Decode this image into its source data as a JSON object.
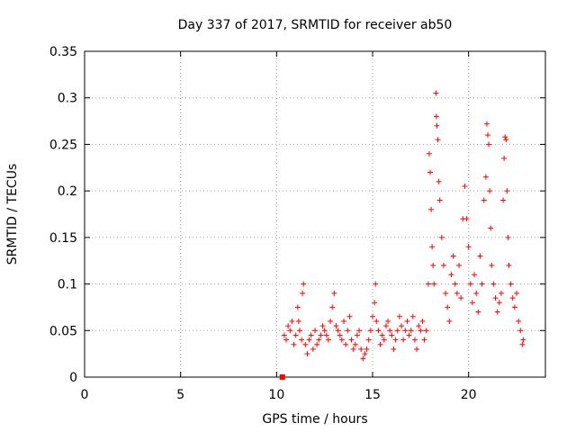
{
  "chart_data": {
    "type": "scatter",
    "title": "Day 337 of 2017, SRMTID for receiver ab50",
    "xlabel": "GPS time / hours",
    "ylabel": "SRMTID / TECUs",
    "xlim": [
      0,
      24
    ],
    "ylim": [
      0,
      0.35
    ],
    "x_ticks": [
      0,
      5,
      10,
      15,
      20
    ],
    "x_tick_labels": [
      "0",
      "5",
      "10",
      "15",
      "20"
    ],
    "y_ticks": [
      0,
      0.05,
      0.1,
      0.15,
      0.2,
      0.25,
      0.3,
      0.35
    ],
    "y_tick_labels": [
      "0",
      "0.05",
      "0.1",
      "0.15",
      "0.2",
      "0.25",
      "0.3",
      "0.35"
    ],
    "grid": true,
    "marker": "+",
    "color": "#ff0000",
    "square_marker": {
      "x": 10.3,
      "y": 0.0
    },
    "series": [
      {
        "name": "SRMTID",
        "points": [
          [
            10.4,
            0.045
          ],
          [
            10.5,
            0.04
          ],
          [
            10.6,
            0.055
          ],
          [
            10.7,
            0.05
          ],
          [
            10.8,
            0.06
          ],
          [
            10.9,
            0.035
          ],
          [
            11.0,
            0.045
          ],
          [
            11.1,
            0.075
          ],
          [
            11.15,
            0.06
          ],
          [
            11.2,
            0.05
          ],
          [
            11.3,
            0.04
          ],
          [
            11.35,
            0.09
          ],
          [
            11.4,
            0.1
          ],
          [
            11.5,
            0.035
          ],
          [
            11.6,
            0.025
          ],
          [
            11.7,
            0.04
          ],
          [
            11.8,
            0.045
          ],
          [
            11.9,
            0.03
          ],
          [
            12.0,
            0.05
          ],
          [
            12.1,
            0.035
          ],
          [
            12.2,
            0.04
          ],
          [
            12.3,
            0.045
          ],
          [
            12.4,
            0.055
          ],
          [
            12.5,
            0.05
          ],
          [
            12.6,
            0.045
          ],
          [
            12.7,
            0.04
          ],
          [
            12.8,
            0.06
          ],
          [
            12.9,
            0.075
          ],
          [
            13.0,
            0.09
          ],
          [
            13.1,
            0.055
          ],
          [
            13.2,
            0.05
          ],
          [
            13.3,
            0.045
          ],
          [
            13.4,
            0.04
          ],
          [
            13.5,
            0.06
          ],
          [
            13.6,
            0.035
          ],
          [
            13.7,
            0.05
          ],
          [
            13.8,
            0.065
          ],
          [
            13.9,
            0.04
          ],
          [
            14.0,
            0.03
          ],
          [
            14.1,
            0.035
          ],
          [
            14.2,
            0.045
          ],
          [
            14.3,
            0.05
          ],
          [
            14.4,
            0.03
          ],
          [
            14.5,
            0.02
          ],
          [
            14.6,
            0.025
          ],
          [
            14.7,
            0.03
          ],
          [
            14.8,
            0.04
          ],
          [
            14.9,
            0.05
          ],
          [
            15.0,
            0.065
          ],
          [
            15.1,
            0.08
          ],
          [
            15.15,
            0.1
          ],
          [
            15.2,
            0.06
          ],
          [
            15.3,
            0.05
          ],
          [
            15.4,
            0.035
          ],
          [
            15.5,
            0.045
          ],
          [
            15.6,
            0.04
          ],
          [
            15.7,
            0.055
          ],
          [
            15.8,
            0.06
          ],
          [
            15.9,
            0.05
          ],
          [
            16.0,
            0.045
          ],
          [
            16.1,
            0.03
          ],
          [
            16.2,
            0.04
          ],
          [
            16.3,
            0.05
          ],
          [
            16.4,
            0.065
          ],
          [
            16.5,
            0.055
          ],
          [
            16.6,
            0.04
          ],
          [
            16.7,
            0.05
          ],
          [
            16.8,
            0.06
          ],
          [
            16.9,
            0.045
          ],
          [
            17.0,
            0.05
          ],
          [
            17.1,
            0.065
          ],
          [
            17.2,
            0.04
          ],
          [
            17.3,
            0.03
          ],
          [
            17.4,
            0.055
          ],
          [
            17.5,
            0.05
          ],
          [
            17.6,
            0.06
          ],
          [
            17.7,
            0.04
          ],
          [
            17.8,
            0.05
          ],
          [
            17.9,
            0.1
          ],
          [
            17.95,
            0.24
          ],
          [
            18.0,
            0.22
          ],
          [
            18.05,
            0.18
          ],
          [
            18.1,
            0.14
          ],
          [
            18.15,
            0.12
          ],
          [
            18.2,
            0.1
          ],
          [
            18.3,
            0.305
          ],
          [
            18.32,
            0.28
          ],
          [
            18.35,
            0.27
          ],
          [
            18.4,
            0.255
          ],
          [
            18.45,
            0.21
          ],
          [
            18.5,
            0.19
          ],
          [
            18.6,
            0.15
          ],
          [
            18.7,
            0.12
          ],
          [
            18.8,
            0.09
          ],
          [
            18.9,
            0.075
          ],
          [
            19.0,
            0.06
          ],
          [
            19.1,
            0.11
          ],
          [
            19.2,
            0.13
          ],
          [
            19.3,
            0.1
          ],
          [
            19.4,
            0.09
          ],
          [
            19.5,
            0.12
          ],
          [
            19.6,
            0.085
          ],
          [
            19.7,
            0.17
          ],
          [
            19.8,
            0.205
          ],
          [
            19.9,
            0.17
          ],
          [
            20.0,
            0.14
          ],
          [
            20.1,
            0.1
          ],
          [
            20.2,
            0.08
          ],
          [
            20.3,
            0.11
          ],
          [
            20.4,
            0.09
          ],
          [
            20.5,
            0.07
          ],
          [
            20.6,
            0.13
          ],
          [
            20.7,
            0.1
          ],
          [
            20.8,
            0.19
          ],
          [
            20.9,
            0.215
          ],
          [
            20.95,
            0.272
          ],
          [
            21.0,
            0.26
          ],
          [
            21.05,
            0.25
          ],
          [
            21.1,
            0.2
          ],
          [
            21.15,
            0.16
          ],
          [
            21.2,
            0.12
          ],
          [
            21.3,
            0.1
          ],
          [
            21.4,
            0.085
          ],
          [
            21.5,
            0.07
          ],
          [
            21.6,
            0.08
          ],
          [
            21.7,
            0.09
          ],
          [
            21.8,
            0.19
          ],
          [
            21.85,
            0.235
          ],
          [
            21.9,
            0.258
          ],
          [
            21.95,
            0.255
          ],
          [
            22.0,
            0.2
          ],
          [
            22.05,
            0.15
          ],
          [
            22.1,
            0.12
          ],
          [
            22.2,
            0.1
          ],
          [
            22.3,
            0.085
          ],
          [
            22.4,
            0.075
          ],
          [
            22.5,
            0.09
          ],
          [
            22.6,
            0.06
          ],
          [
            22.7,
            0.05
          ],
          [
            22.8,
            0.035
          ],
          [
            22.85,
            0.04
          ]
        ]
      }
    ]
  }
}
